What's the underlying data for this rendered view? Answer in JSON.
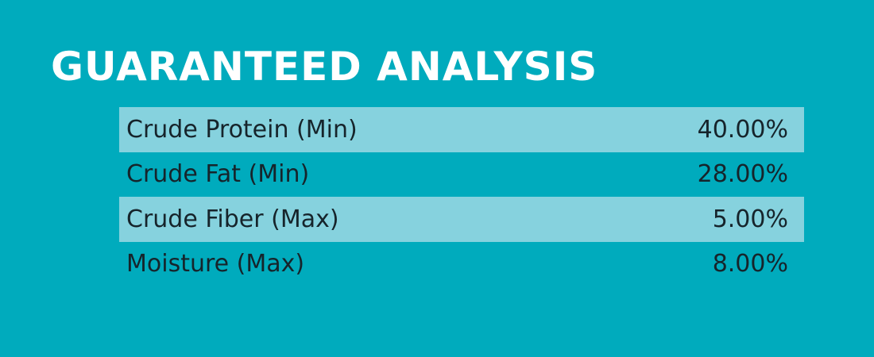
{
  "title": "GUARANTEED ANALYSIS",
  "colors": {
    "background": "#00abbd",
    "row_shade": "#86d2de",
    "title_text": "#ffffff",
    "row_text": "#16242b"
  },
  "rows": [
    {
      "label": "Crude Protein (Min)",
      "value": "40.00%"
    },
    {
      "label": "Crude Fat (Min)",
      "value": "28.00%"
    },
    {
      "label": "Crude Fiber (Max)",
      "value": "5.00%"
    },
    {
      "label": "Moisture (Max)",
      "value": "8.00%"
    }
  ]
}
